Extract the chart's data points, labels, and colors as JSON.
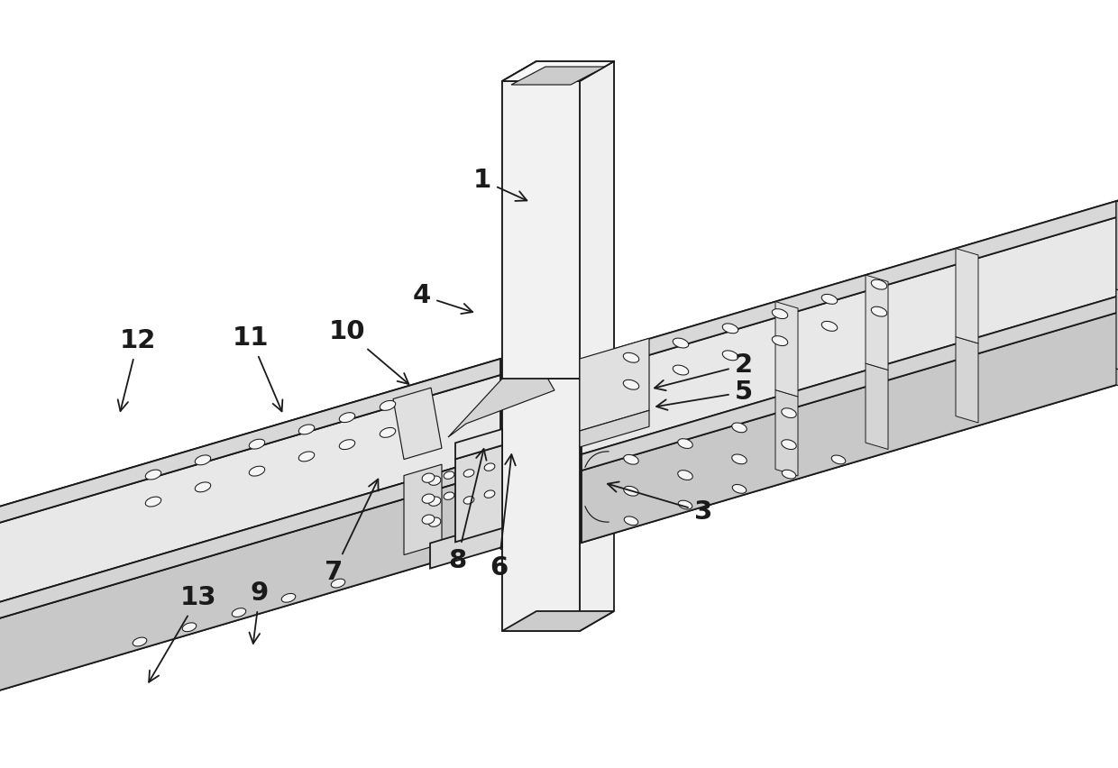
{
  "background_color": "#ffffff",
  "line_color": "#1a1a1a",
  "figsize": [
    12.4,
    8.52
  ],
  "dpi": 100,
  "col_face_light": "#efefef",
  "col_face_mid": "#dedede",
  "col_face_dark": "#cccccc",
  "beam_top": "#ebebeb",
  "beam_front": "#d8d8d8",
  "beam_back": "#e4e4e4",
  "beam_bot": "#c8c8c8",
  "bolt_fc": "#f5f5f5",
  "label_positions": {
    "1": [
      535,
      200,
      590,
      225
    ],
    "2": [
      825,
      405,
      720,
      432
    ],
    "3": [
      780,
      568,
      668,
      535
    ],
    "4": [
      468,
      328,
      530,
      348
    ],
    "5": [
      825,
      435,
      722,
      452
    ],
    "6": [
      553,
      630,
      568,
      498
    ],
    "7": [
      370,
      635,
      422,
      526
    ],
    "8": [
      507,
      622,
      538,
      492
    ],
    "9": [
      288,
      658,
      280,
      720
    ],
    "10": [
      385,
      368,
      458,
      430
    ],
    "11": [
      278,
      375,
      315,
      462
    ],
    "12": [
      153,
      378,
      132,
      462
    ],
    "13": [
      220,
      663,
      162,
      762
    ]
  }
}
